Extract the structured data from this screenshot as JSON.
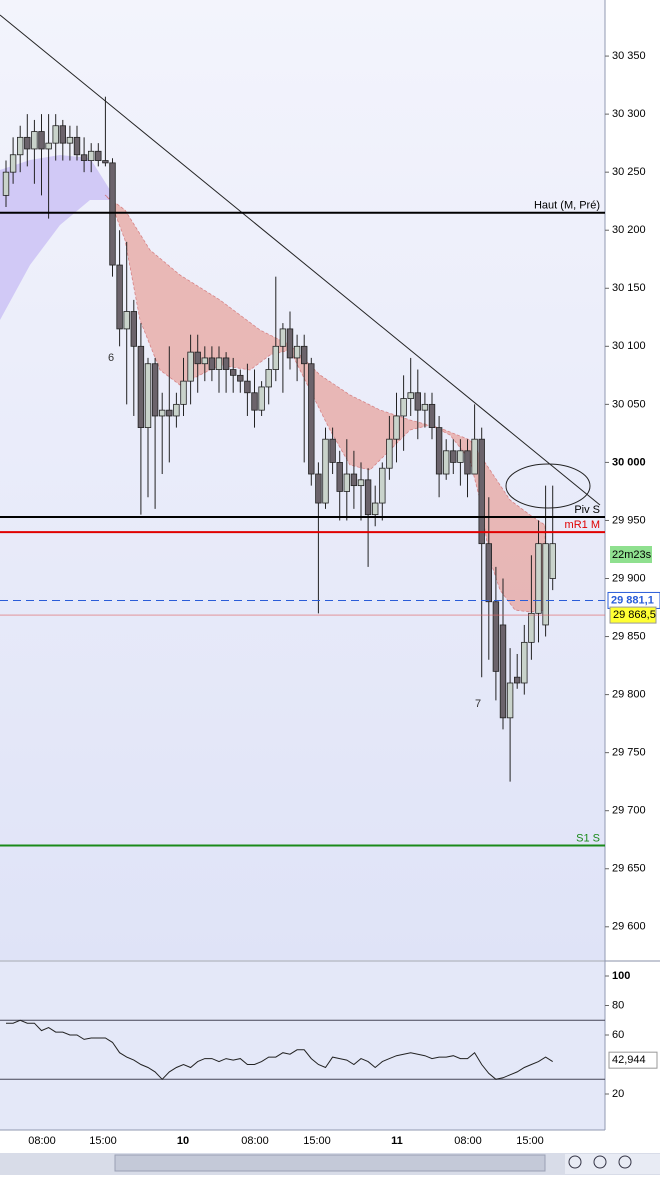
{
  "chart_data": {
    "type": "candlestick",
    "ylim": [
      29571.4,
      30398.3
    ],
    "yticks": [
      {
        "value": 29600,
        "label": "29 600"
      },
      {
        "value": 29650,
        "label": "29 650"
      },
      {
        "value": 29700,
        "label": "29 700"
      },
      {
        "value": 29750,
        "label": "29 750"
      },
      {
        "value": 29800,
        "label": "29 800"
      },
      {
        "value": 29850,
        "label": "29 850"
      },
      {
        "value": 29900,
        "label": "29 900"
      },
      {
        "value": 29950,
        "label": "29 950"
      },
      {
        "value": 30000,
        "label": "30 000"
      },
      {
        "value": 30050,
        "label": "30 050"
      },
      {
        "value": 30100,
        "label": "30 100"
      },
      {
        "value": 30150,
        "label": "30 150"
      },
      {
        "value": 30200,
        "label": "30 200"
      },
      {
        "value": 30250,
        "label": "30 250"
      },
      {
        "value": 30300,
        "label": "30 300"
      },
      {
        "value": 30350,
        "label": "30 350"
      }
    ],
    "up_color": "#c9d3cb",
    "down_color": "#6b636b",
    "time_labels": [
      "08:00",
      "15:00",
      "10",
      "08:00",
      "15:00",
      "11",
      "08:00",
      "15:00"
    ],
    "candles": [
      [
        30230,
        30260,
        30220,
        30250
      ],
      [
        30250,
        30280,
        30240,
        30265
      ],
      [
        30265,
        30290,
        30250,
        30280
      ],
      [
        30280,
        30300,
        30255,
        30270
      ],
      [
        30270,
        30295,
        30240,
        30285
      ],
      [
        30285,
        30300,
        30230,
        30270
      ],
      [
        30270,
        30300,
        30210,
        30275
      ],
      [
        30275,
        30300,
        30260,
        30290
      ],
      [
        30290,
        30295,
        30260,
        30275
      ],
      [
        30275,
        30290,
        30260,
        30280
      ],
      [
        30280,
        30290,
        30260,
        30265
      ],
      [
        30265,
        30280,
        30250,
        30260
      ],
      [
        30260,
        30275,
        30250,
        30268
      ],
      [
        30268,
        30275,
        30255,
        30260
      ],
      [
        30260,
        30315,
        30255,
        30258
      ],
      [
        30258,
        30262,
        30160,
        30170
      ],
      [
        30170,
        30200,
        30100,
        30115
      ],
      [
        30115,
        30190,
        30050,
        30130
      ],
      [
        30130,
        30140,
        30040,
        30100
      ],
      [
        30100,
        30120,
        29955,
        30030
      ],
      [
        30030,
        30090,
        29970,
        30085
      ],
      [
        30085,
        30090,
        29960,
        30040
      ],
      [
        30040,
        30060,
        29990,
        30045
      ],
      [
        30045,
        30100,
        30000,
        30040
      ],
      [
        30040,
        30060,
        30030,
        30050
      ],
      [
        30050,
        30090,
        30040,
        30070
      ],
      [
        30070,
        30110,
        30050,
        30095
      ],
      [
        30095,
        30110,
        30060,
        30085
      ],
      [
        30085,
        30100,
        30070,
        30090
      ],
      [
        30090,
        30100,
        30070,
        30080
      ],
      [
        30080,
        30100,
        30060,
        30090
      ],
      [
        30090,
        30095,
        30060,
        30080
      ],
      [
        30080,
        30090,
        30060,
        30075
      ],
      [
        30075,
        30080,
        30060,
        30070
      ],
      [
        30070,
        30085,
        30040,
        30060
      ],
      [
        30060,
        30080,
        30030,
        30045
      ],
      [
        30045,
        30070,
        30040,
        30065
      ],
      [
        30065,
        30090,
        30050,
        30080
      ],
      [
        30080,
        30160,
        30070,
        30100
      ],
      [
        30100,
        30120,
        30060,
        30115
      ],
      [
        30115,
        30130,
        30080,
        30090
      ],
      [
        30090,
        30110,
        30070,
        30100
      ],
      [
        30100,
        30110,
        30000,
        30085
      ],
      [
        30085,
        30090,
        29980,
        29990
      ],
      [
        29990,
        30000,
        29870,
        29965
      ],
      [
        29965,
        30030,
        29960,
        30020
      ],
      [
        30020,
        30030,
        29990,
        30000
      ],
      [
        30000,
        30010,
        29950,
        29975
      ],
      [
        29975,
        30020,
        29950,
        29990
      ],
      [
        29990,
        30010,
        29960,
        29980
      ],
      [
        29980,
        30000,
        29950,
        29985
      ],
      [
        29985,
        29995,
        29910,
        29955
      ],
      [
        29955,
        29980,
        29945,
        29965
      ],
      [
        29965,
        30000,
        29950,
        29995
      ],
      [
        29995,
        30040,
        29985,
        30020
      ],
      [
        30020,
        30060,
        30000,
        30040
      ],
      [
        30040,
        30075,
        30010,
        30055
      ],
      [
        30055,
        30090,
        30040,
        30060
      ],
      [
        30060,
        30080,
        30020,
        30045
      ],
      [
        30045,
        30060,
        30030,
        30050
      ],
      [
        30050,
        30060,
        30020,
        30030
      ],
      [
        30030,
        30040,
        29970,
        29990
      ],
      [
        29990,
        30020,
        29985,
        30010
      ],
      [
        30010,
        30020,
        29990,
        30000
      ],
      [
        30000,
        30020,
        29980,
        30010
      ],
      [
        30010,
        30020,
        29970,
        29990
      ],
      [
        29990,
        30050,
        29990,
        30020
      ],
      [
        30020,
        30030,
        29815,
        29930
      ],
      [
        29930,
        29970,
        29830,
        29880
      ],
      [
        29880,
        29910,
        29795,
        29820
      ],
      [
        29860,
        29900,
        29770,
        29780
      ],
      [
        29780,
        29840,
        29725,
        29810
      ],
      [
        29815,
        29835,
        29805,
        29810
      ],
      [
        29810,
        29860,
        29800,
        29845
      ],
      [
        29845,
        29920,
        29830,
        29870
      ],
      [
        29870,
        29950,
        29845,
        29930
      ],
      [
        29860,
        29980,
        29850,
        29930
      ],
      [
        29900,
        29980,
        29890,
        29930
      ]
    ],
    "levels": [
      {
        "name": "Haut (M, Pré)",
        "value": 30215,
        "color": "#000000"
      },
      {
        "name": "Piv S",
        "value": 29953,
        "color": "#000000"
      },
      {
        "name": "mR1 M",
        "value": 29940,
        "color": "#e00000"
      },
      {
        "name": "S1 S",
        "value": 29670,
        "color": "#1a8a1a"
      }
    ],
    "last_price": {
      "value": 29881.1,
      "label": "29 881,1"
    },
    "bid_price": {
      "value": 29868.5,
      "label": "29 868,5"
    },
    "timer": "22m23s",
    "signals": [
      "6",
      "7"
    ],
    "rsi": {
      "ylim": [
        -4.4,
        109.5
      ],
      "yticks": [
        20,
        60,
        80,
        100
      ],
      "levels": [
        30,
        70
      ],
      "last": {
        "value": 42.944,
        "label": "42,944"
      },
      "values": [
        68,
        68,
        70,
        68,
        68,
        63,
        65,
        62,
        62,
        60,
        60,
        57,
        58,
        58,
        58,
        55,
        48,
        45,
        43,
        40,
        38,
        35,
        30,
        35,
        38,
        40,
        38,
        42,
        44,
        44,
        42,
        44,
        43,
        44,
        40,
        40,
        42,
        45,
        45,
        48,
        47,
        50,
        50,
        44,
        40,
        38,
        45,
        44,
        43,
        40,
        44,
        42,
        38,
        42,
        44,
        46,
        47,
        48,
        47,
        46,
        44,
        45,
        45,
        46,
        44,
        44,
        48,
        40,
        34,
        30,
        31,
        33,
        35,
        38,
        40,
        42,
        45,
        42
      ]
    }
  }
}
